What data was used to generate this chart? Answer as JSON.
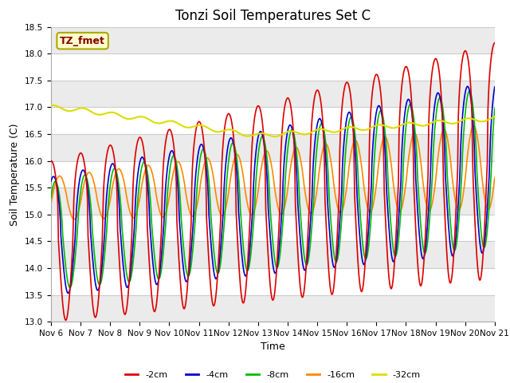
{
  "title": "Tonzi Soil Temperatures Set C",
  "xlabel": "Time",
  "ylabel": "Soil Temperature (C)",
  "ylim": [
    13.0,
    18.5
  ],
  "xtick_labels": [
    "Nov 6",
    "Nov 7",
    "Nov 8",
    "Nov 9",
    "Nov 10",
    "Nov 11",
    "Nov 12",
    "Nov 13",
    "Nov 14",
    "Nov 15",
    "Nov 16",
    "Nov 17",
    "Nov 18",
    "Nov 19",
    "Nov 20",
    "Nov 21"
  ],
  "series_colors": [
    "#dd0000",
    "#0000cc",
    "#00bb00",
    "#ff8800",
    "#dddd00"
  ],
  "series_names": [
    "-2cm",
    "-4cm",
    "-8cm",
    "-16cm",
    "-32cm"
  ],
  "annotation_text": "TZ_fmet",
  "annotation_color": "#880000",
  "annotation_bg": "#ffffcc",
  "annotation_edge": "#aaaa00",
  "bg_color": "#ffffff",
  "grid_color": "#cccccc",
  "title_fontsize": 12,
  "label_fontsize": 9,
  "tick_fontsize": 7.5,
  "legend_fontsize": 8
}
